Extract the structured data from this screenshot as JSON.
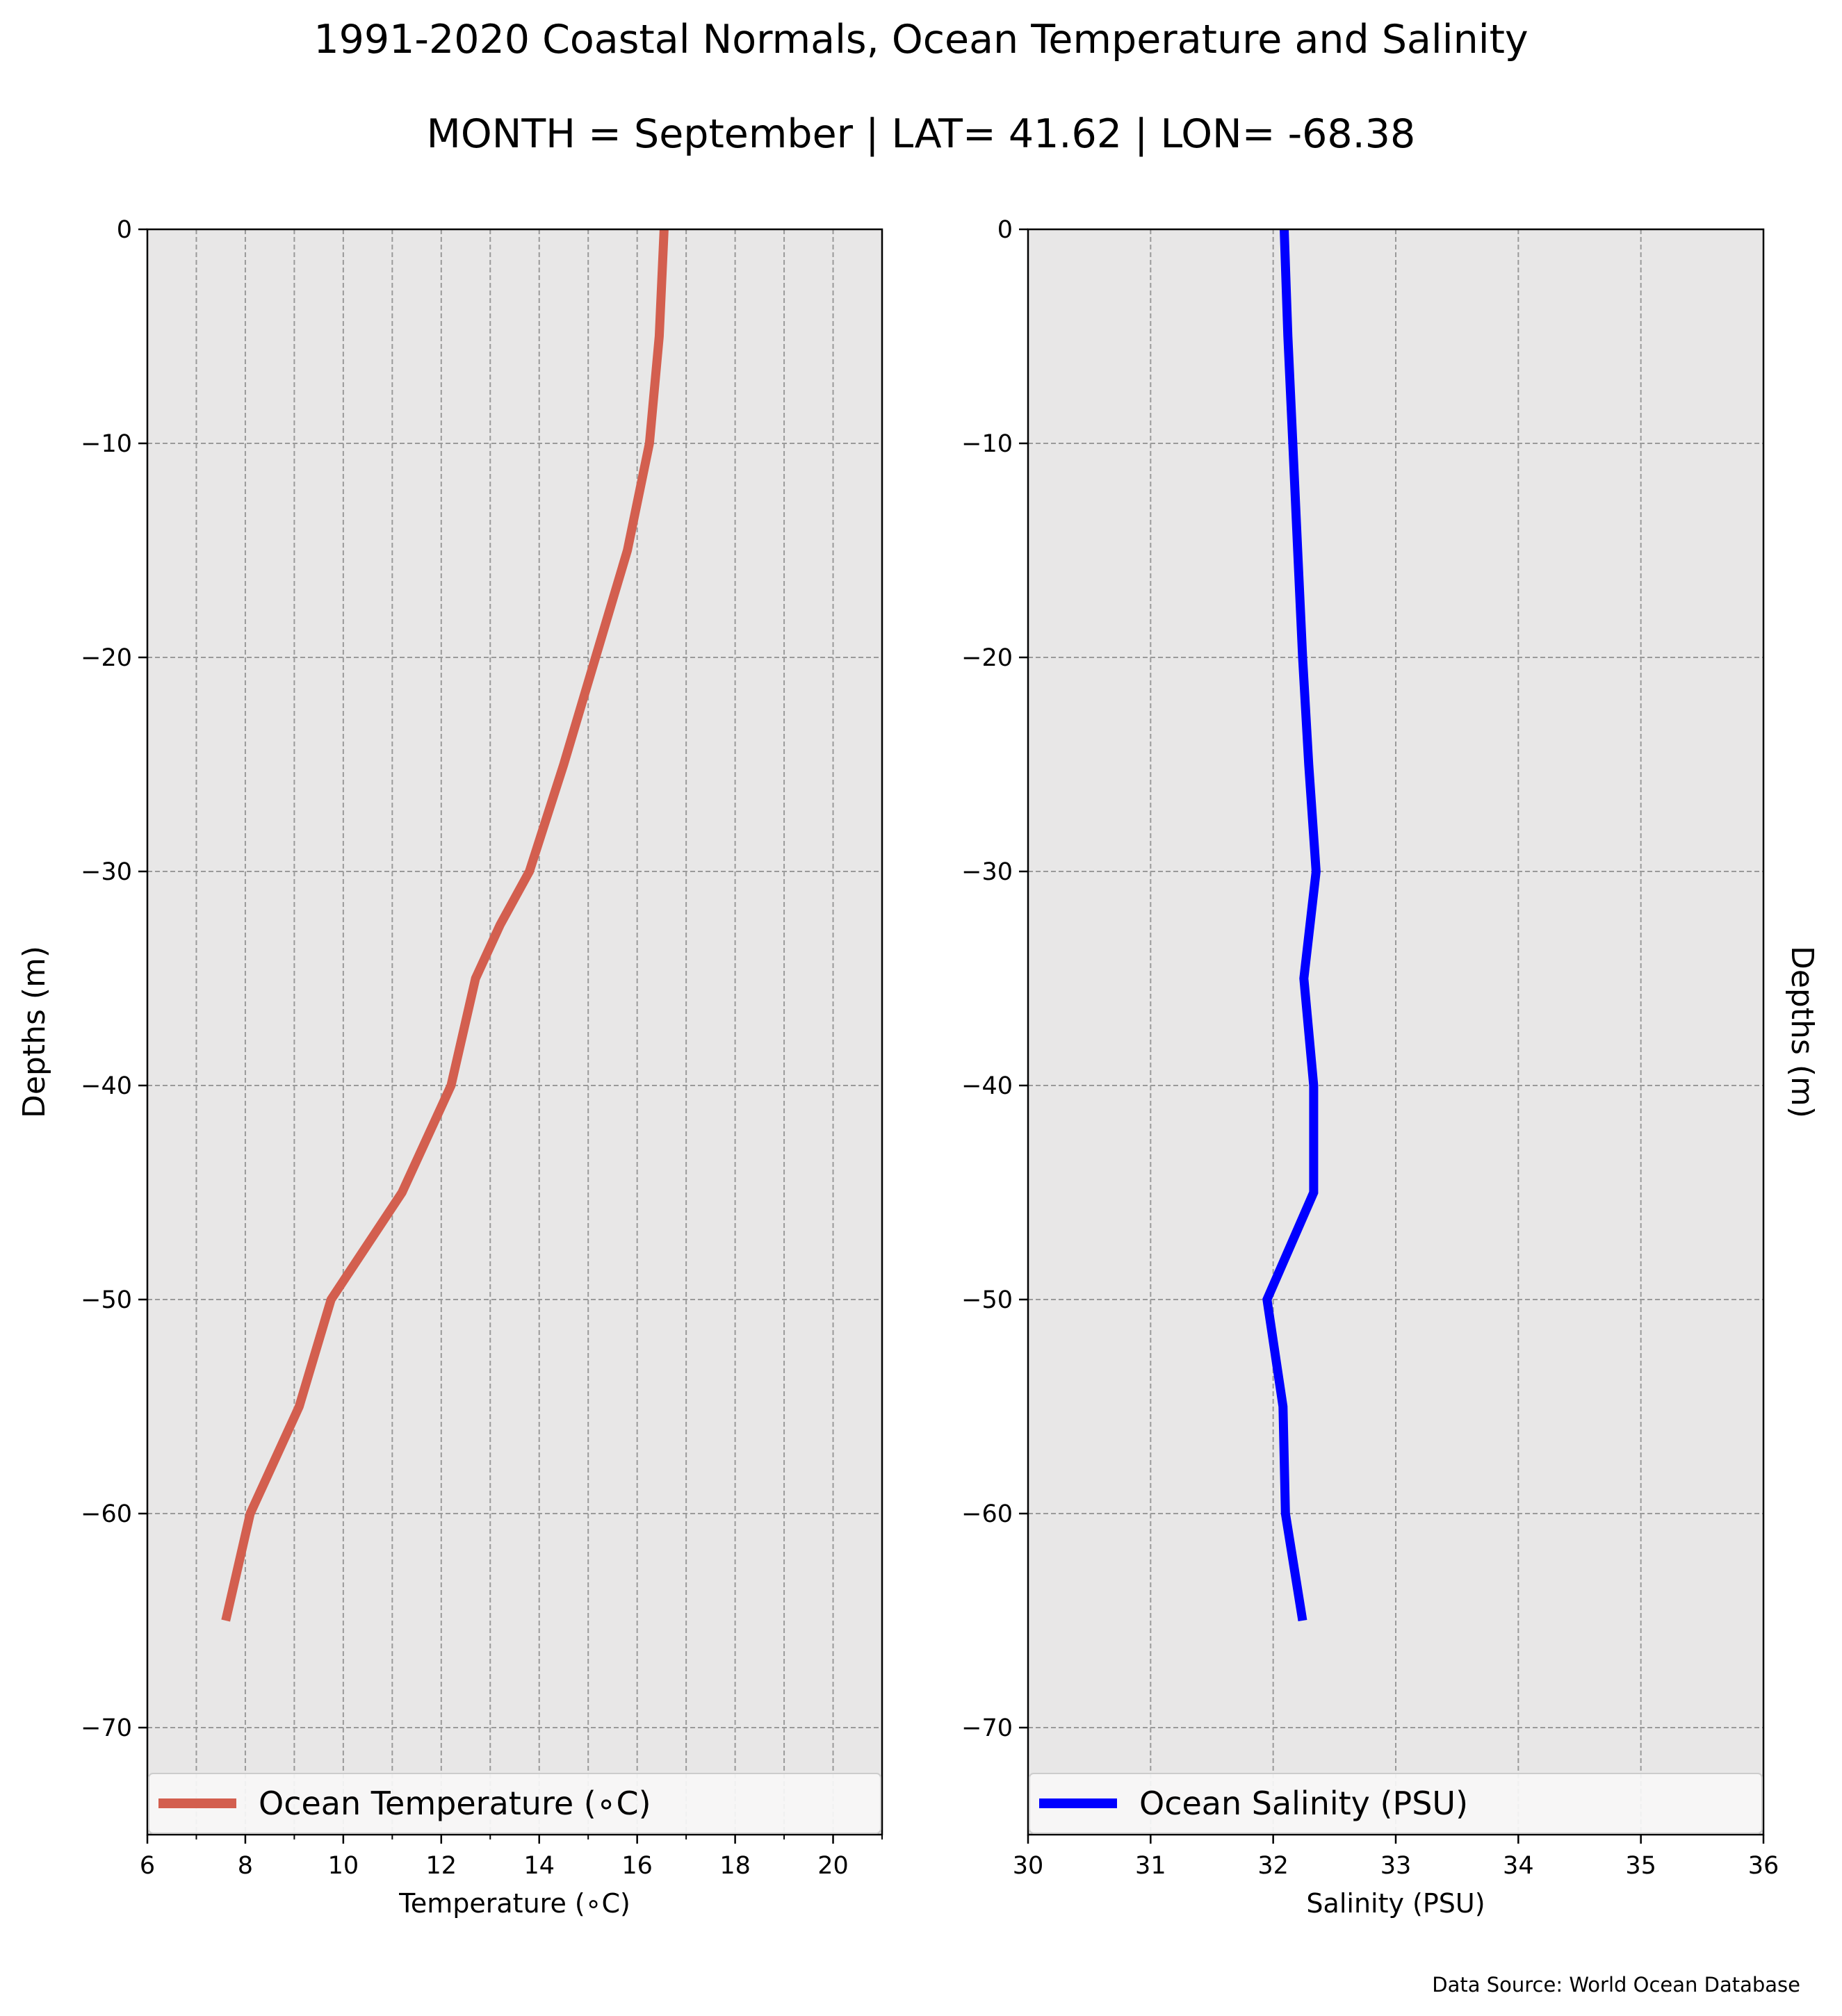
{
  "title": "1991-2020 Coastal Normals, Ocean Temperature and Salinity",
  "subtitle": "MONTH = September | LAT= 41.62 | LON= -68.38",
  "source_note": "Data Source: World Ocean Database",
  "chart_data": [
    {
      "type": "line",
      "xlabel": "Temperature (∘C)",
      "ylabel": "Depths (m)",
      "xlim": [
        6,
        21
      ],
      "ylim": [
        -75,
        0
      ],
      "xticks": [
        6,
        8,
        10,
        12,
        14,
        16,
        18,
        20
      ],
      "xtick_labels": [
        "6",
        "8",
        "10",
        "12",
        "14",
        "16",
        "18",
        "20"
      ],
      "yticks": [
        0,
        -10,
        -20,
        -30,
        -40,
        -50,
        -60,
        -70
      ],
      "ytick_labels": [
        "0",
        "−10",
        "−20",
        "−30",
        "−40",
        "−50",
        "−60",
        "−70"
      ],
      "grid": true,
      "legend_position": "bottom",
      "background": "#e8e7e7",
      "series": [
        {
          "name": "Ocean Temperature (∘C)",
          "color": "#d35f4f",
          "x": [
            16.55,
            16.45,
            16.25,
            15.8,
            15.15,
            14.5,
            13.8,
            13.2,
            12.7,
            12.2,
            11.2,
            9.75,
            9.1,
            8.1,
            7.6
          ],
          "y": [
            0,
            -5,
            -10,
            -15,
            -20,
            -25,
            -30,
            -32.5,
            -35,
            -40,
            -45,
            -50,
            -55,
            -60,
            -65
          ]
        }
      ]
    },
    {
      "type": "line",
      "xlabel": "Salinity (PSU)",
      "ylabel": "Depths (m)",
      "xlim": [
        30,
        36
      ],
      "ylim": [
        -75,
        0
      ],
      "xticks": [
        30,
        31,
        32,
        33,
        34,
        35,
        36
      ],
      "xtick_labels": [
        "30",
        "31",
        "32",
        "33",
        "34",
        "35",
        "36"
      ],
      "yticks": [
        0,
        -10,
        -20,
        -30,
        -40,
        -50,
        -60,
        -70
      ],
      "ytick_labels": [
        "0",
        "−10",
        "−20",
        "−30",
        "−40",
        "−50",
        "−60",
        "−70"
      ],
      "grid": true,
      "legend_position": "bottom",
      "background": "#e8e7e7",
      "series": [
        {
          "name": "Ocean Salinity (PSU)",
          "color": "#0000ff",
          "x": [
            32.09,
            32.12,
            32.16,
            32.2,
            32.24,
            32.29,
            32.35,
            32.25,
            32.33,
            32.33,
            31.95,
            32.08,
            32.1,
            32.24
          ],
          "y": [
            0,
            -5,
            -10,
            -15,
            -20,
            -25,
            -30,
            -35,
            -40,
            -45,
            -50,
            -55,
            -60,
            -65
          ]
        }
      ]
    }
  ]
}
